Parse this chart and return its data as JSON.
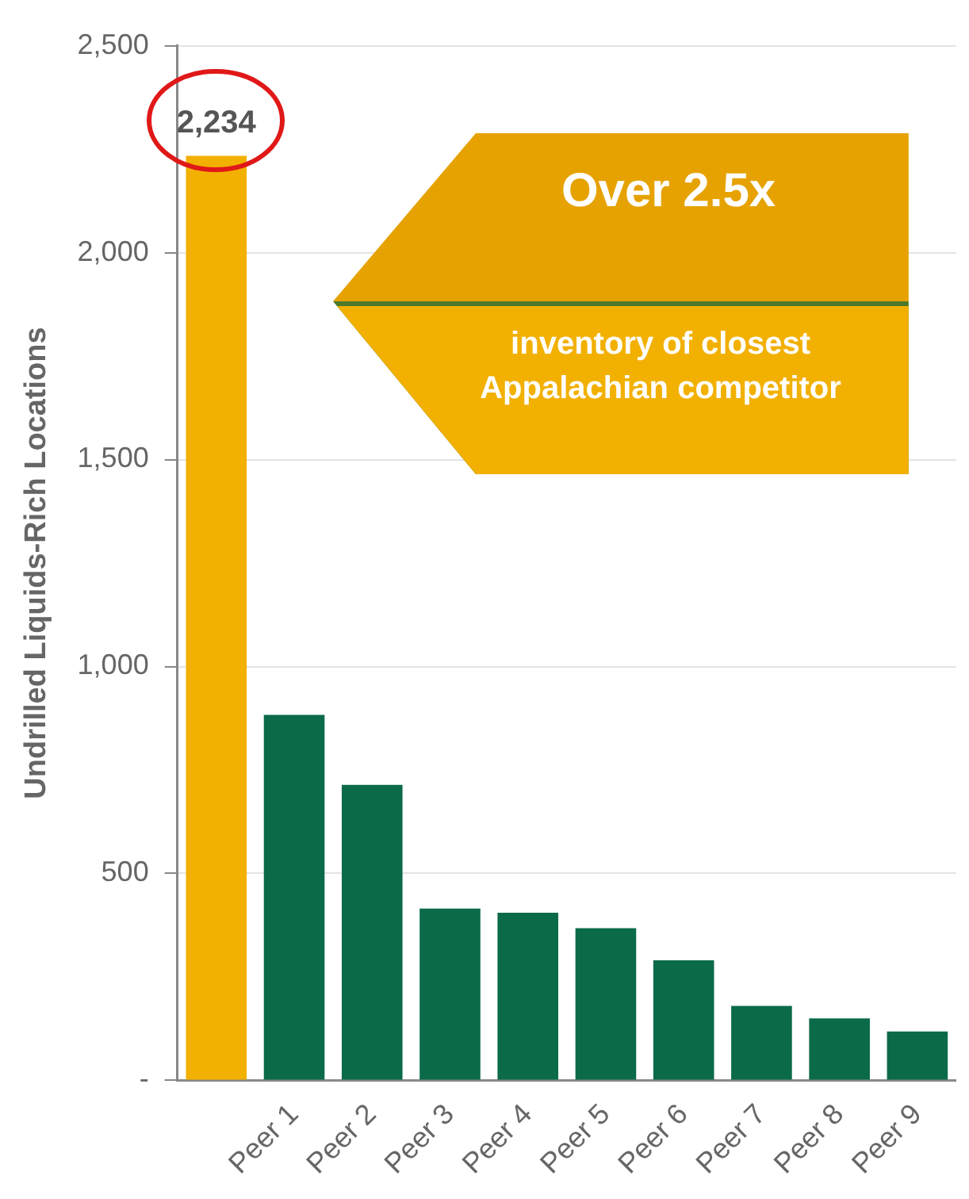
{
  "chart_data": {
    "type": "bar",
    "ylabel": "Undrilled Liquids-Rich Locations",
    "categories": [
      null,
      "Peer 1",
      "Peer 2",
      "Peer 3",
      "Peer 4",
      "Peer 5",
      "Peer 6",
      "Peer 7",
      "Peer 8",
      "Peer 9"
    ],
    "values": [
      2234,
      883,
      714,
      415,
      405,
      368,
      290,
      180,
      150,
      118
    ],
    "colors": [
      "#f2b000",
      "#0b6b48",
      "#0b6b48",
      "#0b6b48",
      "#0b6b48",
      "#0b6b48",
      "#0b6b48",
      "#0b6b48",
      "#0b6b48",
      "#0b6b48"
    ],
    "value_labels": [
      "2,234",
      null,
      null,
      null,
      null,
      null,
      null,
      null,
      null,
      null
    ],
    "ylim": [
      0,
      2500
    ],
    "yticks": [
      {
        "value": 0,
        "label": "-"
      },
      {
        "value": 500,
        "label": "500"
      },
      {
        "value": 1000,
        "label": "1,000"
      },
      {
        "value": 1500,
        "label": "1,500"
      },
      {
        "value": 2000,
        "label": "2,000"
      },
      {
        "value": 2500,
        "label": "2,500"
      }
    ],
    "grid": "y",
    "annotations": [
      "Over 2.5x",
      "inventory of closest Appalachian competitor"
    ]
  }
}
